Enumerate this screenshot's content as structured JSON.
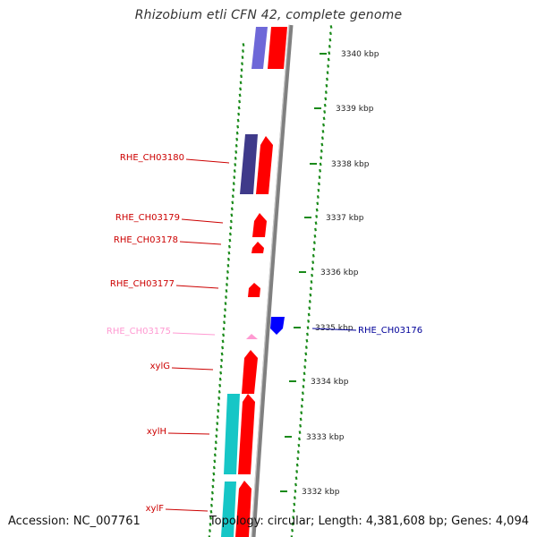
{
  "title": "Rhizobium etli CFN 42, complete genome",
  "footer": {
    "accession": "Accession: NC_007761",
    "summary": "Topology: circular; Length: 4,381,608 bp; Genes: 4,094"
  },
  "colors": {
    "gene_forward": "#ff0000",
    "gene_reverse": "#0000ff",
    "rrna": "#ff9ad2",
    "cog_blue": "#6e68d8",
    "cog_navy": "#3f3a8a",
    "cog_cyan": "#16c6c6",
    "backbone": "#808080",
    "tick_green": "#1a8a1a",
    "label_red": "#cc0000",
    "label_navy": "#000099",
    "label_pink": "#ff9ad2"
  },
  "scale_ticks": [
    {
      "label": "3340 kbp"
    },
    {
      "label": "3339 kbp"
    },
    {
      "label": "3338 kbp"
    },
    {
      "label": "3337 kbp"
    },
    {
      "label": "3336 kbp"
    },
    {
      "label": "3335 kbp"
    },
    {
      "label": "3334 kbp"
    },
    {
      "label": "3333 kbp"
    },
    {
      "label": "3332 kbp"
    }
  ],
  "gene_labels": [
    {
      "text": "RHE_CH03180",
      "color": "label_red"
    },
    {
      "text": "RHE_CH03179",
      "color": "label_red"
    },
    {
      "text": "RHE_CH03178",
      "color": "label_red"
    },
    {
      "text": "RHE_CH03177",
      "color": "label_red"
    },
    {
      "text": "RHE_CH03175",
      "color": "label_pink"
    },
    {
      "text": "xylG",
      "color": "label_red"
    },
    {
      "text": "xylH",
      "color": "label_red"
    },
    {
      "text": "xylF",
      "color": "label_red"
    },
    {
      "text": "RHE_CH03176",
      "color": "label_navy"
    }
  ]
}
